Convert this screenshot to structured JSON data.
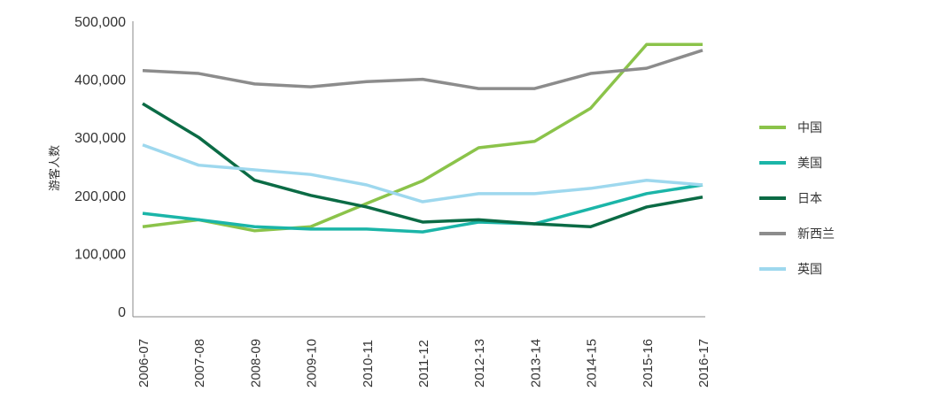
{
  "chart_data": {
    "type": "line",
    "title": "",
    "xlabel": "",
    "ylabel": "游客人数",
    "ylim": [
      0,
      500000
    ],
    "yticks": [
      0,
      100000,
      200000,
      300000,
      400000,
      500000
    ],
    "ytick_labels": [
      "0",
      "100,000",
      "200,000",
      "300,000",
      "400,000",
      "500,000"
    ],
    "categories": [
      "2006-07",
      "2007-08",
      "2008-09",
      "2009-10",
      "2010-11",
      "2011-12",
      "2012-13",
      "2013-14",
      "2014-15",
      "2015-16",
      "2016-17"
    ],
    "legend_position": "right",
    "series": [
      {
        "name": "中国",
        "color": "#8bc34a",
        "values": [
          146000,
          158000,
          139000,
          146000,
          186000,
          225000,
          282000,
          293000,
          350000,
          460000,
          460000
        ]
      },
      {
        "name": "美国",
        "color": "#1bb5a8",
        "values": [
          169000,
          158000,
          146000,
          142000,
          142000,
          137000,
          154000,
          151000,
          177000,
          203000,
          218000
        ]
      },
      {
        "name": "日本",
        "color": "#0b6b45",
        "values": [
          358000,
          300000,
          226000,
          200000,
          180000,
          154000,
          158000,
          151000,
          146000,
          180000,
          197000
        ]
      },
      {
        "name": "新西兰",
        "color": "#8c8c8c",
        "values": [
          415000,
          410000,
          392000,
          387000,
          396000,
          400000,
          384000,
          384000,
          410000,
          419000,
          450000
        ]
      },
      {
        "name": "英国",
        "color": "#9ed8ee",
        "values": [
          287000,
          252000,
          244000,
          236000,
          218000,
          189000,
          203000,
          203000,
          212000,
          226000,
          218000
        ]
      }
    ]
  }
}
